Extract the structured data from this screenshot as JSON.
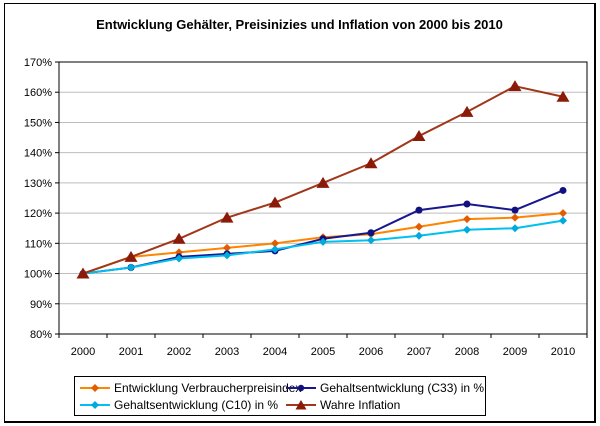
{
  "title": "Entwicklung Gehälter, Preisinizies und Inflation von 2000 bis 2010",
  "chart_data": {
    "type": "line",
    "title": "Entwicklung Gehälter, Preisinizies und Inflation von 2000 bis 2010",
    "categories": [
      "2000",
      "2001",
      "2002",
      "2003",
      "2004",
      "2005",
      "2006",
      "2007",
      "2008",
      "2009",
      "2010"
    ],
    "series": [
      {
        "name": "Entwicklung Verbraucherpreisindex",
        "marker": "diamond",
        "line_color": "#ff8400",
        "marker_color": "#e25d00",
        "values": [
          100,
          105.5,
          107,
          108.5,
          110,
          112,
          113,
          115.5,
          118,
          118.5,
          120
        ]
      },
      {
        "name": "Gehaltsentwicklung (C33) in %",
        "marker": "circle",
        "line_color": "#17178f",
        "marker_color": "#10107e",
        "values": [
          100,
          102,
          105.5,
          106.5,
          107.5,
          111.5,
          113.5,
          121,
          123,
          121,
          127.5
        ]
      },
      {
        "name": "Gehaltsentwicklung (C10) in %",
        "marker": "diamond",
        "line_color": "#00c0f0",
        "marker_color": "#00aade",
        "values": [
          100,
          102,
          105,
          106,
          108,
          110.5,
          111,
          112.5,
          114.5,
          115,
          117.5
        ]
      },
      {
        "name": "Wahre Inflation",
        "marker": "triangle",
        "line_color": "#a13619",
        "marker_color": "#8c1a08",
        "values": [
          100,
          105.5,
          111.5,
          118.5,
          123.5,
          130,
          136.5,
          145.5,
          153.5,
          162,
          158.5
        ]
      }
    ],
    "xlabel": "",
    "ylabel": "",
    "y_axis": {
      "min": 80,
      "max": 170,
      "step": 10,
      "suffix": "%"
    },
    "ylim": [
      80,
      170
    ],
    "grid": "horizontal",
    "legend_position": "bottom",
    "colors": {
      "gridline": "#bdbdbd",
      "axis": "#000000",
      "plot_background": "#ffffff"
    }
  }
}
